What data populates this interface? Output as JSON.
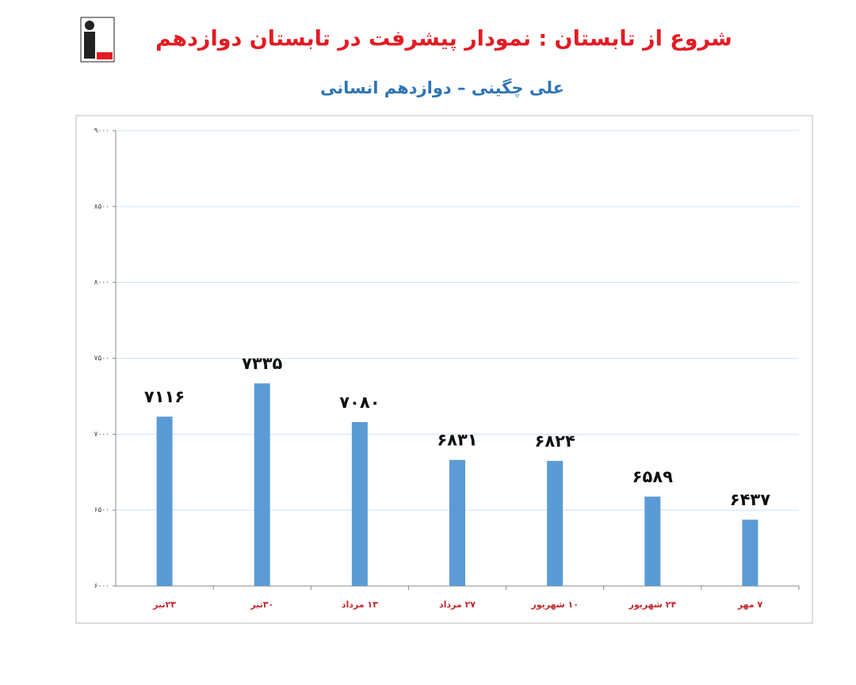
{
  "chart_data": {
    "type": "bar",
    "title": "شروع از تابستان : نمودار پیشرفت در تابستان دوازدهم",
    "subtitle": "علی چگینی – دوازدهم انسانی",
    "categories": [
      "۲۳تیر",
      "۳۰تیر",
      "۱۳ مرداد",
      "۲۷ مرداد",
      "۱۰ شهریور",
      "۲۴ شهریور",
      "۷ مهر"
    ],
    "values": [
      7116,
      7335,
      7080,
      6831,
      6824,
      6589,
      6437
    ],
    "value_labels": [
      "۷۱۱۶",
      "۷۳۳۵",
      "۷۰۸۰",
      "۶۸۳۱",
      "۶۸۲۴",
      "۶۵۸۹",
      "۶۴۳۷"
    ],
    "color": "#5b9bd5",
    "ylim": [
      6000,
      9000
    ],
    "yticks": [
      {
        "value": 6000,
        "label": "۶۰۰۰"
      },
      {
        "value": 6500,
        "label": "۶۵۰۰"
      },
      {
        "value": 7000,
        "label": "۷۰۰۰"
      },
      {
        "value": 7500,
        "label": "۷۵۰۰"
      },
      {
        "value": 8000,
        "label": "۸۰۰۰"
      },
      {
        "value": 8500,
        "label": "۸۵۰۰"
      },
      {
        "value": 9000,
        "label": "۹۰۰۰"
      }
    ],
    "grid": true
  }
}
